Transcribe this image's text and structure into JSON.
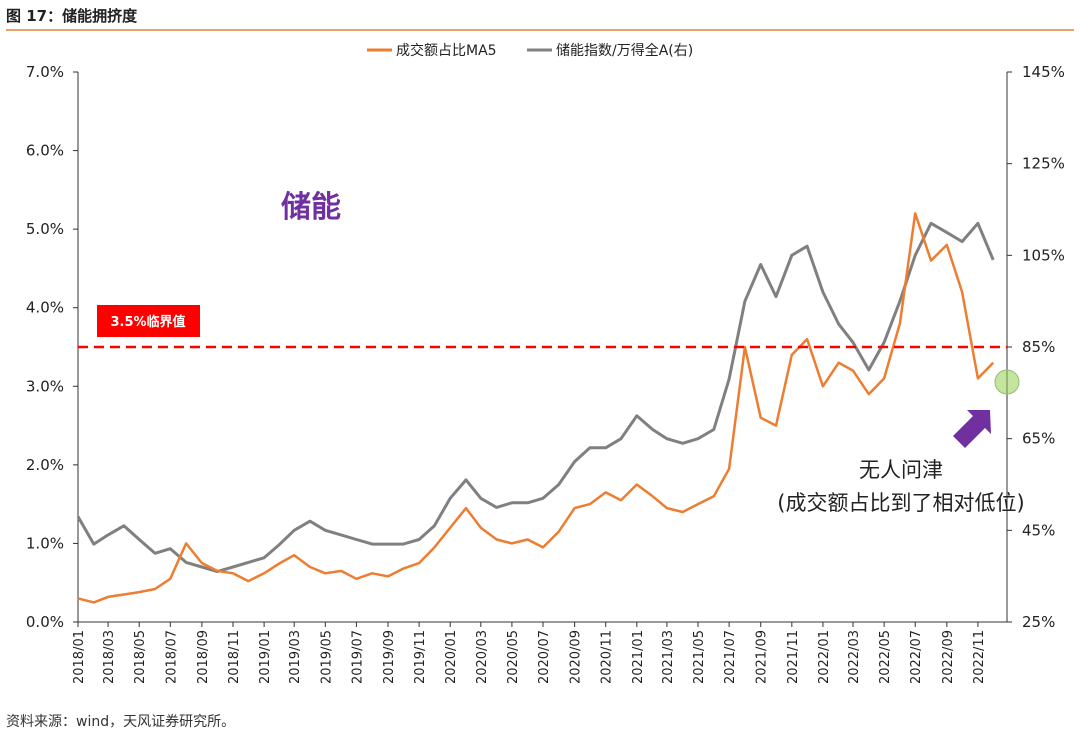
{
  "header": {
    "title": "图 17：储能拥挤度"
  },
  "source": "资料来源：wind，天风证券研究所。",
  "chart_data": {
    "type": "line",
    "series": [
      {
        "name": "成交额占比MA5",
        "axis": "left",
        "color": "#ed7d31",
        "points": [
          [
            "2018-01",
            0.3
          ],
          [
            "2018-02",
            0.25
          ],
          [
            "2018-03",
            0.32
          ],
          [
            "2018-04",
            0.35
          ],
          [
            "2018-05",
            0.38
          ],
          [
            "2018-06",
            0.42
          ],
          [
            "2018-07",
            0.55
          ],
          [
            "2018-08",
            1.0
          ],
          [
            "2018-09",
            0.75
          ],
          [
            "2018-10",
            0.65
          ],
          [
            "2018-11",
            0.62
          ],
          [
            "2018-12",
            0.52
          ],
          [
            "2019-01",
            0.62
          ],
          [
            "2019-02",
            0.75
          ],
          [
            "2019-03",
            0.85
          ],
          [
            "2019-04",
            0.7
          ],
          [
            "2019-05",
            0.62
          ],
          [
            "2019-06",
            0.65
          ],
          [
            "2019-07",
            0.55
          ],
          [
            "2019-08",
            0.62
          ],
          [
            "2019-09",
            0.58
          ],
          [
            "2019-10",
            0.68
          ],
          [
            "2019-11",
            0.75
          ],
          [
            "2019-12",
            0.95
          ],
          [
            "2020-01",
            1.2
          ],
          [
            "2020-02",
            1.45
          ],
          [
            "2020-03",
            1.2
          ],
          [
            "2020-04",
            1.05
          ],
          [
            "2020-05",
            1.0
          ],
          [
            "2020-06",
            1.05
          ],
          [
            "2020-07",
            0.95
          ],
          [
            "2020-08",
            1.15
          ],
          [
            "2020-09",
            1.45
          ],
          [
            "2020-10",
            1.5
          ],
          [
            "2020-11",
            1.65
          ],
          [
            "2020-12",
            1.55
          ],
          [
            "2021-01",
            1.75
          ],
          [
            "2021-02",
            1.6
          ],
          [
            "2021-03",
            1.45
          ],
          [
            "2021-04",
            1.4
          ],
          [
            "2021-05",
            1.5
          ],
          [
            "2021-06",
            1.6
          ],
          [
            "2021-07",
            1.95
          ],
          [
            "2021-08",
            3.5
          ],
          [
            "2021-09",
            2.6
          ],
          [
            "2021-10",
            2.5
          ],
          [
            "2021-11",
            3.4
          ],
          [
            "2021-12",
            3.6
          ],
          [
            "2022-01",
            3.0
          ],
          [
            "2022-02",
            3.3
          ],
          [
            "2022-03",
            3.2
          ],
          [
            "2022-04",
            2.9
          ],
          [
            "2022-05",
            3.1
          ],
          [
            "2022-06",
            3.8
          ],
          [
            "2022-07",
            5.2
          ],
          [
            "2022-08",
            4.6
          ],
          [
            "2022-09",
            4.8
          ],
          [
            "2022-10",
            4.2
          ],
          [
            "2022-11",
            3.1
          ],
          [
            "2022-12",
            3.3
          ]
        ]
      },
      {
        "name": "储能指数/万得全A(右)",
        "axis": "right",
        "color": "#808080",
        "points": [
          [
            "2018-01",
            48
          ],
          [
            "2018-02",
            42
          ],
          [
            "2018-03",
            44
          ],
          [
            "2018-04",
            46
          ],
          [
            "2018-05",
            43
          ],
          [
            "2018-06",
            40
          ],
          [
            "2018-07",
            41
          ],
          [
            "2018-08",
            38
          ],
          [
            "2018-09",
            37
          ],
          [
            "2018-10",
            36
          ],
          [
            "2018-11",
            37
          ],
          [
            "2018-12",
            38
          ],
          [
            "2019-01",
            39
          ],
          [
            "2019-02",
            42
          ],
          [
            "2019-03",
            45
          ],
          [
            "2019-04",
            47
          ],
          [
            "2019-05",
            45
          ],
          [
            "2019-06",
            44
          ],
          [
            "2019-07",
            43
          ],
          [
            "2019-08",
            42
          ],
          [
            "2019-09",
            42
          ],
          [
            "2019-10",
            42
          ],
          [
            "2019-11",
            43
          ],
          [
            "2019-12",
            46
          ],
          [
            "2020-01",
            52
          ],
          [
            "2020-02",
            56
          ],
          [
            "2020-03",
            52
          ],
          [
            "2020-04",
            50
          ],
          [
            "2020-05",
            51
          ],
          [
            "2020-06",
            51
          ],
          [
            "2020-07",
            52
          ],
          [
            "2020-08",
            55
          ],
          [
            "2020-09",
            60
          ],
          [
            "2020-10",
            63
          ],
          [
            "2020-11",
            63
          ],
          [
            "2020-12",
            65
          ],
          [
            "2021-01",
            70
          ],
          [
            "2021-02",
            67
          ],
          [
            "2021-03",
            65
          ],
          [
            "2021-04",
            64
          ],
          [
            "2021-05",
            65
          ],
          [
            "2021-06",
            67
          ],
          [
            "2021-07",
            78
          ],
          [
            "2021-08",
            95
          ],
          [
            "2021-09",
            103
          ],
          [
            "2021-10",
            96
          ],
          [
            "2021-11",
            105
          ],
          [
            "2021-12",
            107
          ],
          [
            "2022-01",
            97
          ],
          [
            "2022-02",
            90
          ],
          [
            "2022-03",
            86
          ],
          [
            "2022-04",
            80
          ],
          [
            "2022-05",
            86
          ],
          [
            "2022-06",
            95
          ],
          [
            "2022-07",
            105
          ],
          [
            "2022-08",
            112
          ],
          [
            "2022-09",
            110
          ],
          [
            "2022-10",
            108
          ],
          [
            "2022-11",
            112
          ],
          [
            "2022-12",
            104
          ]
        ]
      }
    ],
    "x_ticks": [
      "2018/01",
      "2018/03",
      "2018/05",
      "2018/07",
      "2018/09",
      "2018/11",
      "2019/01",
      "2019/03",
      "2019/05",
      "2019/07",
      "2019/09",
      "2019/11",
      "2020/01",
      "2020/03",
      "2020/05",
      "2020/07",
      "2020/09",
      "2020/11",
      "2021/01",
      "2021/03",
      "2021/05",
      "2021/07",
      "2021/09",
      "2021/11",
      "2022/01",
      "2022/03",
      "2022/05",
      "2022/07",
      "2022/09",
      "2022/11"
    ],
    "y_left": {
      "ylim": [
        0,
        7
      ],
      "ticks": [
        "0.0%",
        "1.0%",
        "2.0%",
        "3.0%",
        "4.0%",
        "5.0%",
        "6.0%",
        "7.0%"
      ]
    },
    "y_right": {
      "ylim": [
        25,
        145
      ],
      "ticks": [
        "25%",
        "45%",
        "65%",
        "85%",
        "105%",
        "125%",
        "145%"
      ]
    },
    "threshold": {
      "value": 3.5,
      "label": "3.5%临界值",
      "color": "#ff0000"
    },
    "annotations": {
      "sector_label": "储能",
      "sector_color": "#7030a0",
      "note_line1": "无人问津",
      "note_line2": "(成交额占比到了相对低位)",
      "arrow_color": "#7030a0",
      "marker_color": "#92d050"
    },
    "legend_position": "top"
  }
}
